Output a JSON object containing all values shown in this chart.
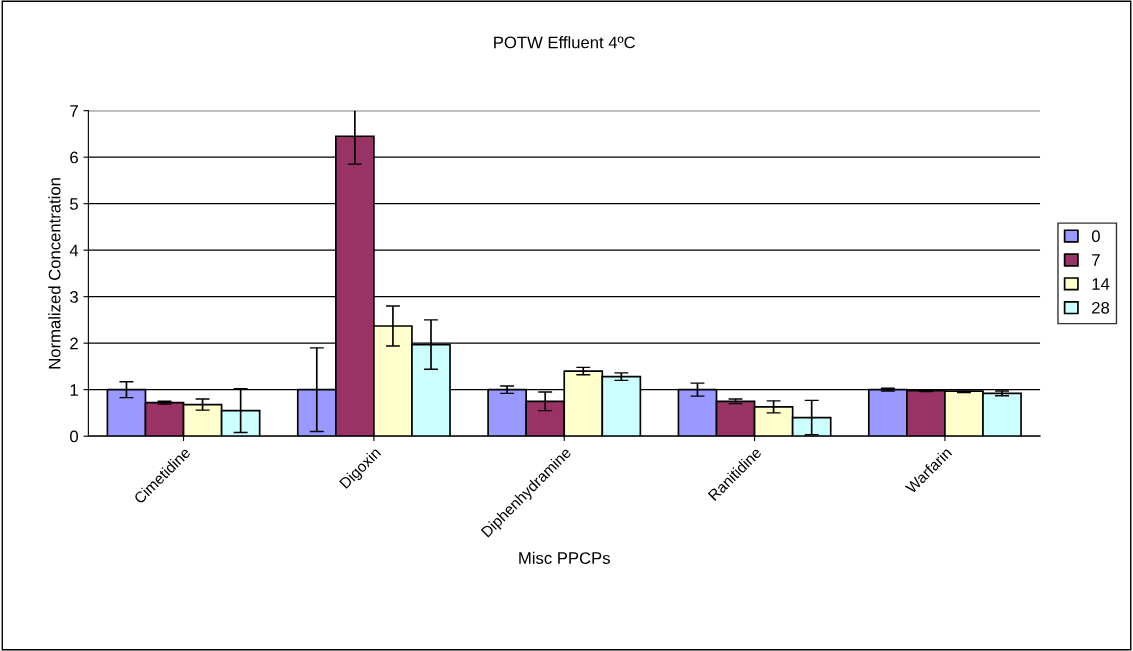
{
  "chart_data": {
    "type": "bar",
    "title": "POTW Effluent 4ºC",
    "xlabel": "Misc PPCPs",
    "ylabel": "Normalized Concentration",
    "categories": [
      "Cimetidine",
      "Digoxin",
      "Diphenhydramine",
      "Ranitidine",
      "Warfarin"
    ],
    "series": [
      {
        "name": "0",
        "color": "#9999ff",
        "values": [
          1.0,
          1.0,
          1.0,
          1.0,
          1.0
        ],
        "errors": [
          0.17,
          0.9,
          0.08,
          0.14,
          0.03
        ]
      },
      {
        "name": "7",
        "color": "#993366",
        "values": [
          0.72,
          6.45,
          0.75,
          0.75,
          0.98
        ],
        "errors": [
          0.03,
          0.6,
          0.2,
          0.05,
          0.02
        ]
      },
      {
        "name": "14",
        "color": "#ffffcc",
        "values": [
          0.68,
          2.37,
          1.4,
          0.63,
          0.97
        ],
        "errors": [
          0.12,
          0.43,
          0.08,
          0.13,
          0.03
        ]
      },
      {
        "name": "28",
        "color": "#ccffff",
        "values": [
          0.55,
          1.97,
          1.28,
          0.4,
          0.92
        ],
        "errors": [
          0.47,
          0.53,
          0.08,
          0.37,
          0.05
        ]
      }
    ],
    "ylim": [
      0,
      7
    ],
    "yticks": [
      0,
      1,
      2,
      3,
      4,
      5,
      6,
      7
    ],
    "grid": "y",
    "legend": "right"
  }
}
